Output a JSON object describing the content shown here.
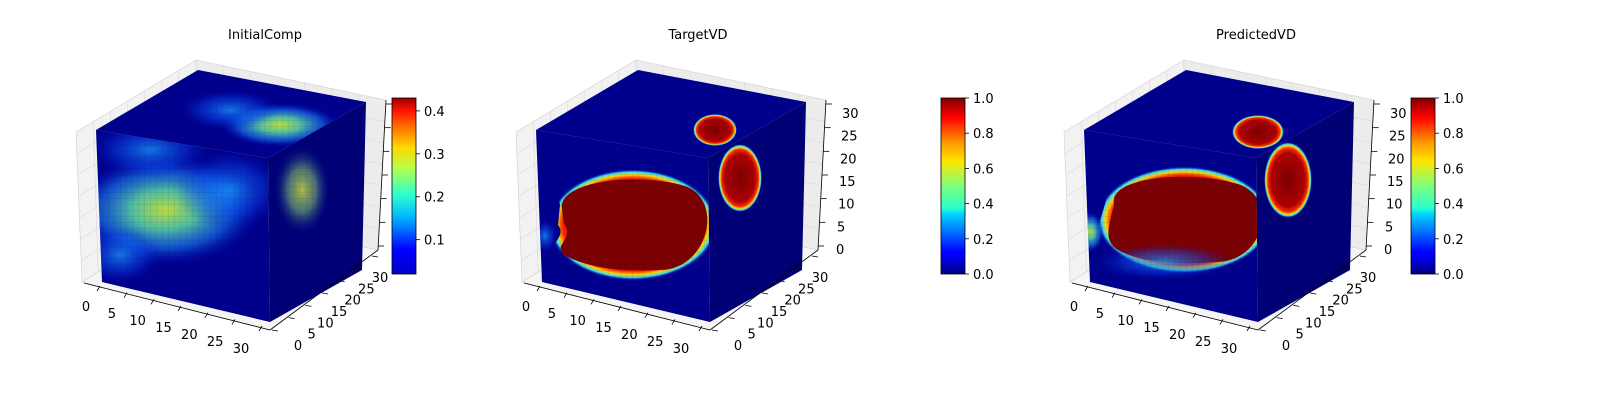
{
  "chart_data": [
    {
      "type": "voxel-3d",
      "title": "InitialComp",
      "x_ticks": [
        "0",
        "5",
        "10",
        "15",
        "20",
        "25",
        "30"
      ],
      "y_ticks": [
        "0",
        "5",
        "10",
        "15",
        "20",
        "25",
        "30"
      ],
      "z_ticks": [
        "",
        "",
        "",
        "",
        "",
        "",
        ""
      ],
      "colorbar": {
        "cmap": "jet",
        "min": 0.02,
        "max": 0.43,
        "ticks": [
          "0.1",
          "0.2",
          "0.3",
          "0.4"
        ],
        "tick_values": [
          0.1,
          0.2,
          0.3,
          0.4
        ]
      }
    },
    {
      "type": "voxel-3d",
      "title": "TargetVD",
      "x_ticks": [
        "0",
        "5",
        "10",
        "15",
        "20",
        "25",
        "30"
      ],
      "y_ticks": [
        "0",
        "5",
        "10",
        "15",
        "20",
        "25",
        "30"
      ],
      "z_ticks": [
        "0",
        "5",
        "10",
        "15",
        "20",
        "25",
        "30"
      ],
      "colorbar": {
        "cmap": "jet",
        "min": 0.0,
        "max": 1.0,
        "ticks": [
          "0.0",
          "0.2",
          "0.4",
          "0.6",
          "0.8",
          "1.0"
        ],
        "tick_values": [
          0,
          0.2,
          0.4,
          0.6,
          0.8,
          1.0
        ]
      }
    },
    {
      "type": "voxel-3d",
      "title": "PredictedVD",
      "x_ticks": [
        "0",
        "5",
        "10",
        "15",
        "20",
        "25",
        "30"
      ],
      "y_ticks": [
        "0",
        "5",
        "10",
        "15",
        "20",
        "25",
        "30"
      ],
      "z_ticks": [
        "0",
        "5",
        "10",
        "15",
        "20",
        "25",
        "30"
      ],
      "colorbar": {
        "cmap": "jet",
        "min": 0.0,
        "max": 1.0,
        "ticks": [
          "0.0",
          "0.2",
          "0.4",
          "0.6",
          "0.8",
          "1.0"
        ],
        "tick_values": [
          0,
          0.2,
          0.4,
          0.6,
          0.8,
          1.0
        ]
      }
    }
  ],
  "colors": {
    "background": "#ffffff",
    "pane": "#f2f2f2",
    "grid": "#d9d9d9",
    "low": "#00008f",
    "high": "#7f0000"
  }
}
